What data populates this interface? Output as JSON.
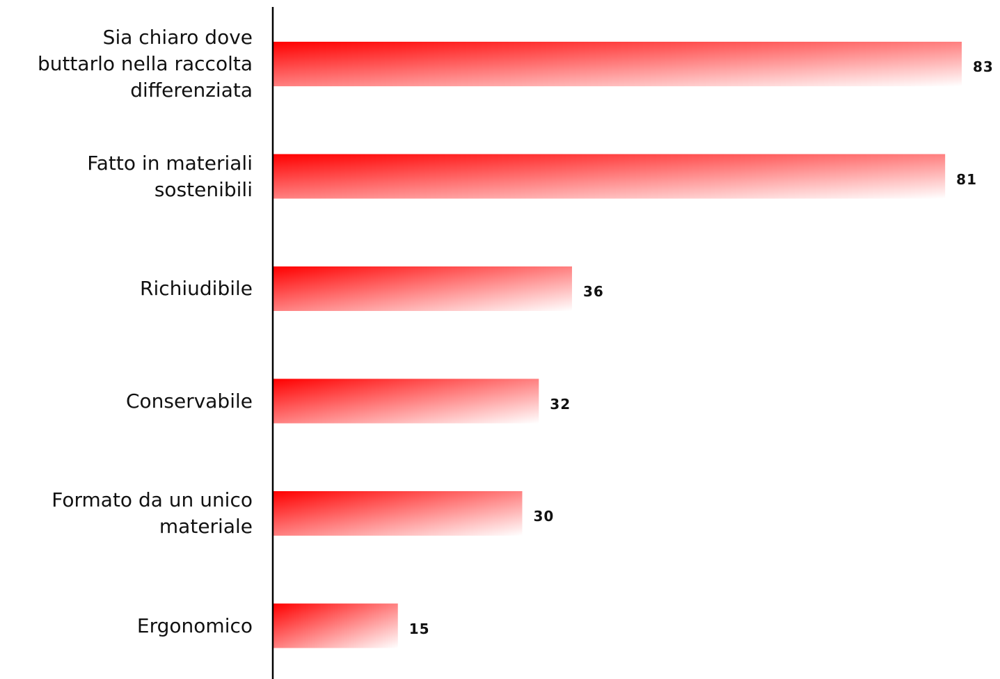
{
  "chart_data": {
    "type": "bar",
    "orientation": "horizontal",
    "categories": [
      "Sia chiaro dove\nbuttarlo nella raccolta\ndifferenziata",
      "Fatto in materiali\nsostenibili",
      "Richiudibile",
      "Conservabile",
      "Formato da un unico\nmateriale",
      "Ergonomico"
    ],
    "values": [
      83,
      81,
      36,
      32,
      30,
      15
    ],
    "data_labels": [
      "83",
      "81",
      "36",
      "32",
      "30",
      "15"
    ],
    "title": "",
    "xlabel": "",
    "ylabel": "",
    "xlim": [
      0,
      83
    ],
    "grid": false,
    "legend": "none",
    "colors": {
      "bar_start": "#ff0000",
      "bar_end": "#ffffff",
      "axis": "#000000",
      "text": "#111111"
    }
  }
}
